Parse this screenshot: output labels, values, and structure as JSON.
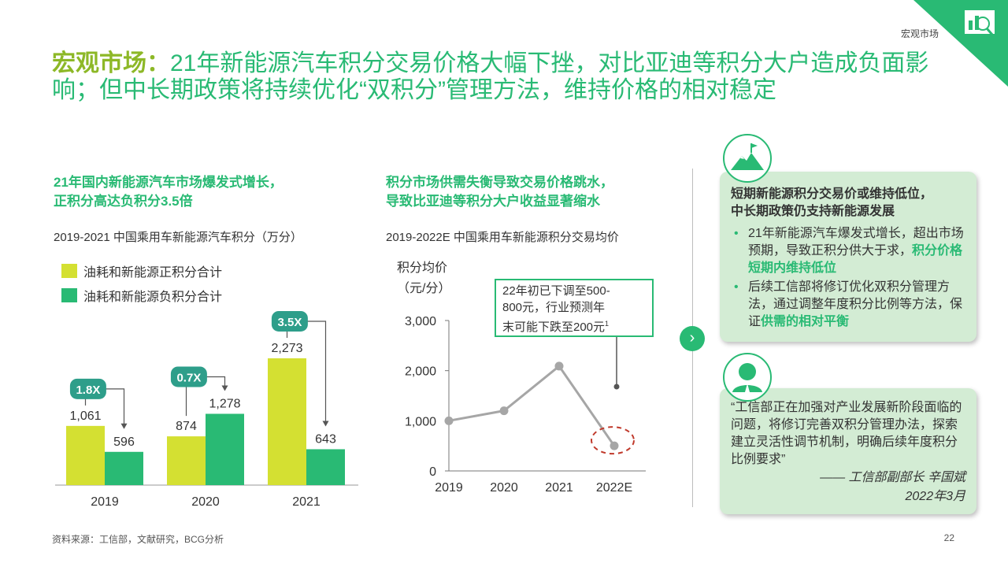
{
  "header": {
    "section": "宏观市场",
    "page_number": "22"
  },
  "title": {
    "lead": "宏观市场：",
    "rest": "21年新能源汽车积分交易价格大幅下挫，对比亚迪等积分大户造成负面影响；但中长期政策将持续优化“双积分”管理方法，维持价格的相对稳定"
  },
  "left_section": {
    "heading_line1": "21年国内新能源汽车市场爆发式增长，",
    "heading_line2": "正积分高达负积分3.5倍",
    "chart_title": "2019-2021 中国乘用车新能源汽车积分（万分）",
    "legend": [
      "油耗和新能源正积分合计",
      "油耗和新能源负积分合计"
    ]
  },
  "middle_section": {
    "heading_line1": "积分市场供需失衡导致交易价格跳水，",
    "heading_line2": "导致比亚迪等积分大户收益显著缩水",
    "chart_title": "2019-2022E 中国乘用车新能源积分交易均价",
    "ylabel_line1": "积分均价",
    "ylabel_line2": "（元/分）",
    "callout_line1": "22年初已下调至500-",
    "callout_line2": "800元，行业预测年",
    "callout_line3": "末可能下跌至200元",
    "callout_footnote": "1"
  },
  "right_section": {
    "card1_heading_line1": "短期新能源积分交易价或维持低位，",
    "card1_heading_line2": "中长期政策仍支持新能源发展",
    "bullet1_text": "21年新能源汽车爆发式增长，超出市场预期，导致正积分供大于求，",
    "bullet1_highlight": "积分价格短期内维持低位",
    "bullet2_text": "后续工信部将修订优化双积分管理方法，通过调整年度积分比例等方法，保证",
    "bullet2_highlight": "供需的相对平衡",
    "quote": "“工信部正在加强对产业发展新阶段面临的问题，将修订完善双积分管理办法，探索建立灵活性调节机制，明确后续年度积分比例要求”",
    "signature": "—— 工信部副部长 辛国斌",
    "date": "2022年3月"
  },
  "footer": {
    "source": "资料来源：工信部，文献研究，BCG分析"
  },
  "colors": {
    "brand_green": "#29ba74",
    "lime": "#d4e032",
    "card_bg": "#d3ecd4",
    "line_grey": "#a6a6a6",
    "dash_red": "#c0392b"
  },
  "chart_data": [
    {
      "type": "bar",
      "title": "2019-2021 中国乘用车新能源汽车积分（万分）",
      "categories": [
        "2019",
        "2020",
        "2021"
      ],
      "series": [
        {
          "name": "油耗和新能源正积分合计",
          "values": [
            1061,
            874,
            2273
          ],
          "labels": [
            "1,061",
            "874",
            "2,273"
          ],
          "color": "#d4e032"
        },
        {
          "name": "油耗和新能源负积分合计",
          "values": [
            596,
            1278,
            643
          ],
          "labels": [
            "596",
            "1,278",
            "643"
          ],
          "color": "#29ba74"
        }
      ],
      "ratio_badges": [
        "1.8X",
        "0.7X",
        "3.5X"
      ],
      "legend_position": "top-left",
      "grid": false
    },
    {
      "type": "line",
      "title": "2019-2022E 中国乘用车新能源积分交易均价",
      "ylabel": "积分均价（元/分）",
      "categories": [
        "2019",
        "2020",
        "2021",
        "2022E"
      ],
      "values": [
        1000,
        1200,
        2090,
        500
      ],
      "ylim": [
        0,
        3000
      ],
      "yticks": [
        "0",
        "1,000",
        "2,000",
        "3,000"
      ],
      "grid": false
    }
  ]
}
